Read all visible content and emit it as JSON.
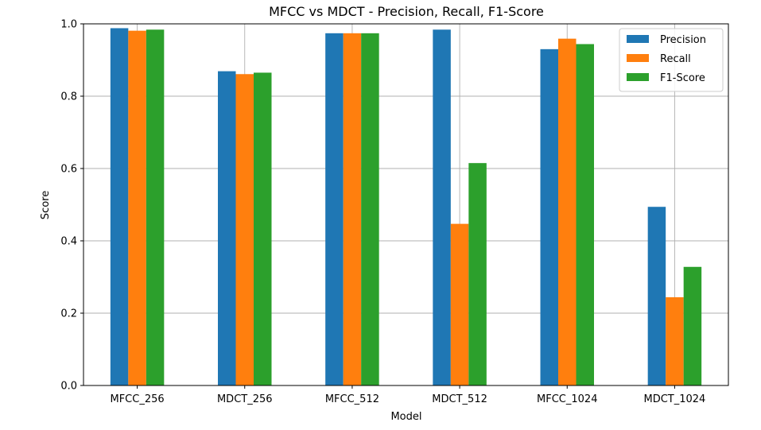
{
  "chart_data": {
    "type": "bar",
    "title": "MFCC vs MDCT - Precision, Recall, F1-Score",
    "xlabel": "Model",
    "ylabel": "Score",
    "categories": [
      "MFCC_256",
      "MDCT_256",
      "MFCC_512",
      "MDCT_512",
      "MFCC_1024",
      "MDCT_1024"
    ],
    "series": [
      {
        "name": "Precision",
        "color": "#1f77b4",
        "values": [
          0.988,
          0.869,
          0.974,
          0.984,
          0.93,
          0.494
        ]
      },
      {
        "name": "Recall",
        "color": "#ff7f0e",
        "values": [
          0.981,
          0.861,
          0.974,
          0.447,
          0.959,
          0.244
        ]
      },
      {
        "name": "F1-Score",
        "color": "#2ca02c",
        "values": [
          0.984,
          0.865,
          0.974,
          0.615,
          0.944,
          0.328
        ]
      }
    ],
    "ylim": [
      0.0,
      1.0
    ],
    "yticks": [
      "0.0",
      "0.2",
      "0.4",
      "0.6",
      "0.8",
      "1.0"
    ],
    "grid": true,
    "legend_position": "top-right"
  }
}
